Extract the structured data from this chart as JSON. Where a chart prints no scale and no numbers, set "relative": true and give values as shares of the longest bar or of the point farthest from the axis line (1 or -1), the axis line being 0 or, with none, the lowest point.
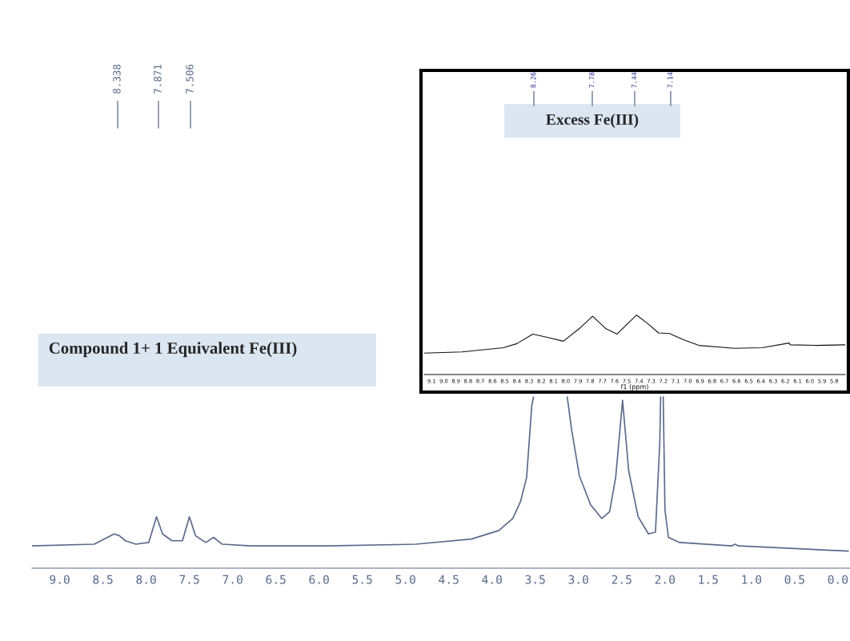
{
  "chart_data": [
    {
      "type": "line",
      "relative": true,
      "xlim": [
        9.32,
        -0.14
      ],
      "xticks": [
        {
          "value": 9,
          "label": "9.0"
        },
        8.5,
        {
          "value": 8,
          "label": "8.0"
        },
        7.5,
        {
          "value": 7,
          "label": "7.0"
        },
        6.5,
        {
          "value": 6,
          "label": "6.0"
        },
        5.5,
        {
          "value": 5,
          "label": "5.0"
        },
        4.5,
        {
          "value": 4,
          "label": "4.0"
        },
        3.5,
        {
          "value": 3,
          "label": "3.0"
        },
        2.5,
        {
          "value": 2,
          "label": "2.0"
        },
        1.5,
        {
          "value": 1,
          "label": "1.0"
        },
        0.5,
        {
          "value": 0,
          "label": "0.0"
        }
      ],
      "grid": false,
      "legend": false,
      "series": [
        {
          "color": "#5a6a8a",
          "x": [
            9.32,
            8.6,
            8.37,
            8.31,
            8.24,
            8.12,
            7.97,
            7.88,
            7.81,
            7.7,
            7.58,
            7.5,
            7.43,
            7.31,
            7.22,
            7.12,
            6.79,
            5.9,
            4.88,
            4.24,
            3.92,
            3.76,
            3.67,
            3.6,
            3.54,
            3.52,
            3.3,
            3.13,
            3.08,
            2.99,
            2.86,
            2.73,
            2.64,
            2.57,
            2.49,
            2.42,
            2.31,
            2.19,
            2.11,
            2.06,
            2.05,
            2.035,
            2.02,
            2.0,
            1.96,
            1.83,
            1.23,
            1.19,
            1.15,
            -0.12
          ],
          "values": [
            0.13,
            0.14,
            0.2,
            0.19,
            0.16,
            0.14,
            0.15,
            0.3,
            0.2,
            0.16,
            0.16,
            0.3,
            0.19,
            0.15,
            0.18,
            0.14,
            0.13,
            0.13,
            0.14,
            0.17,
            0.22,
            0.29,
            0.39,
            0.53,
            0.95,
            1.0,
            null,
            1.0,
            0.81,
            0.54,
            0.37,
            0.29,
            0.33,
            0.53,
            0.98,
            0.57,
            0.3,
            0.2,
            0.21,
            0.73,
            1.0,
            null,
            1.0,
            0.34,
            0.18,
            0.15,
            0.13,
            0.14,
            0.13,
            0.1
          ]
        }
      ],
      "annotations": [
        "8.338",
        "7.871",
        "7.506",
        "Compound 1+ 1 Equivalent Fe(III)"
      ]
    },
    {
      "type": "line",
      "relative": true,
      "xlim": [
        9.16,
        5.71
      ],
      "xlabel": "f1 (ppm)",
      "xticks": [
        9.1,
        {
          "value": 9,
          "label": "9.0"
        },
        8.9,
        8.8,
        8.7,
        8.6,
        8.5,
        8.4,
        8.3,
        8.2,
        8.1,
        {
          "value": 8,
          "label": "8.0"
        },
        7.9,
        7.8,
        7.7,
        7.6,
        7.5,
        7.4,
        7.3,
        7.2,
        7.1,
        {
          "value": 7,
          "label": "7.0"
        },
        6.9,
        6.8,
        6.7,
        6.6,
        6.5,
        6.4,
        6.3,
        6.2,
        6.1,
        {
          "value": 6,
          "label": "6.0"
        },
        5.9,
        5.8
      ],
      "grid": false,
      "legend": false,
      "series": [
        {
          "color": "#111111",
          "x": [
            9.16,
            8.85,
            8.51,
            8.4,
            8.27,
            8.16,
            8.02,
            7.89,
            7.78,
            7.67,
            7.58,
            7.49,
            7.42,
            7.33,
            7.24,
            7.15,
            7.04,
            6.91,
            6.62,
            6.39,
            6.17,
            6.16,
            5.95,
            5.71
          ],
          "values": [
            0.36,
            0.38,
            0.45,
            0.52,
            0.68,
            0.63,
            0.56,
            0.77,
            0.98,
            0.77,
            0.68,
            0.86,
            1.0,
            0.86,
            0.7,
            0.69,
            0.59,
            0.49,
            0.44,
            0.45,
            0.53,
            0.5,
            0.49,
            0.5
          ]
        }
      ],
      "annotations": [
        "8.26",
        "7.78",
        "7.44",
        "7.14",
        "Excess Fe(III)"
      ]
    }
  ]
}
